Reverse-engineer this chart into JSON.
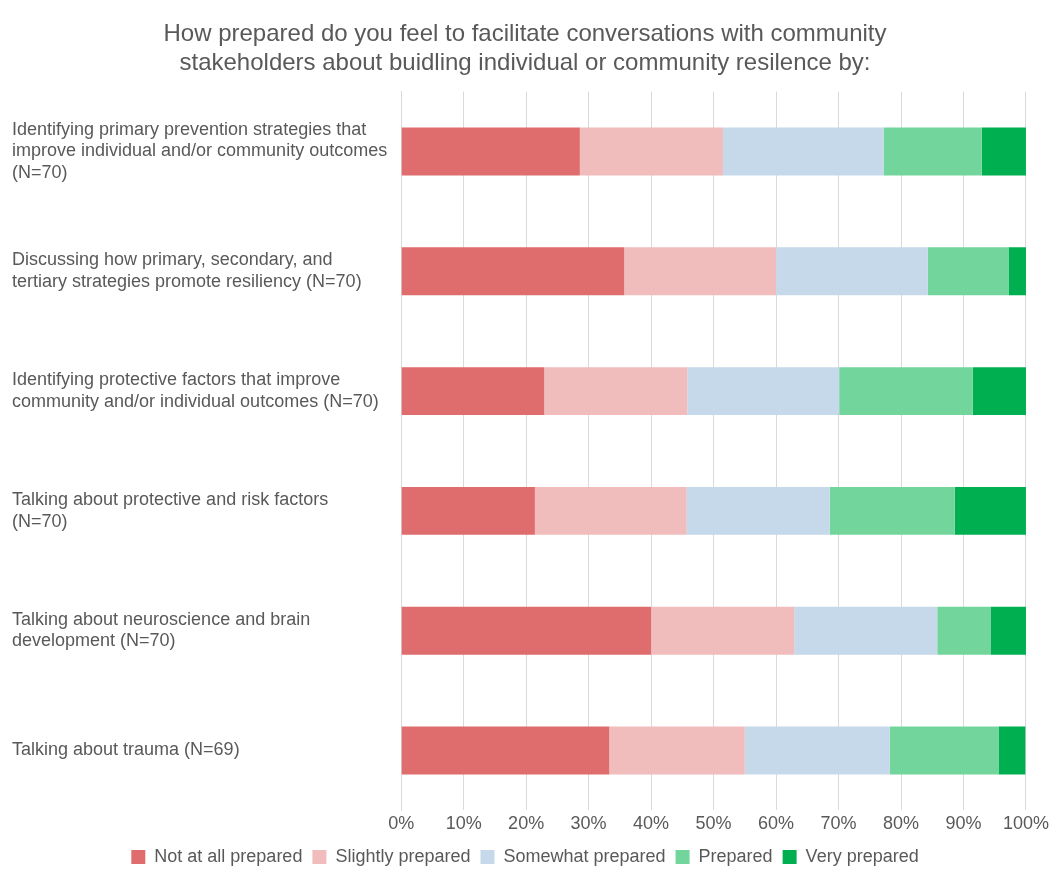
{
  "chart_data": {
    "type": "bar",
    "orientation": "horizontal",
    "stacked": true,
    "title": "How prepared do you feel to facilitate conversations with community stakeholders about buidling individual or community resilence by:",
    "categories": [
      "Identifying primary prevention strategies that improve individual and/or community outcomes (N=70)",
      "Discussing how primary, secondary, and tertiary strategies promote resiliency (N=70)",
      "Identifying protective factors that improve community and/or individual outcomes (N=70)",
      "Talking about protective and risk factors (N=70)",
      "Talking about neuroscience and brain development (N=70)",
      "Talking about trauma (N=69)"
    ],
    "series": [
      {
        "name": "Not at all prepared",
        "color": "#e06d6d",
        "values": [
          28.6,
          35.7,
          22.9,
          21.4,
          40.0,
          33.3
        ]
      },
      {
        "name": "Slightly prepared",
        "color": "#f0bcbc",
        "values": [
          22.9,
          24.3,
          22.9,
          24.3,
          22.9,
          21.7
        ]
      },
      {
        "name": "Somewhat prepared",
        "color": "#c6d9eb",
        "values": [
          25.7,
          24.3,
          24.3,
          22.9,
          22.9,
          23.2
        ]
      },
      {
        "name": "Prepared",
        "color": "#72d59c",
        "values": [
          15.7,
          12.9,
          21.4,
          20.0,
          8.6,
          17.4
        ]
      },
      {
        "name": "Very prepared",
        "color": "#00b050",
        "values": [
          7.1,
          2.9,
          8.6,
          11.4,
          5.7,
          4.3
        ]
      }
    ],
    "xlim": [
      0,
      100
    ],
    "xticks": [
      {
        "value": 0,
        "label": "0%"
      },
      {
        "value": 10,
        "label": "10%"
      },
      {
        "value": 20,
        "label": "20%"
      },
      {
        "value": 30,
        "label": "30%"
      },
      {
        "value": 40,
        "label": "40%"
      },
      {
        "value": 50,
        "label": "50%"
      },
      {
        "value": 60,
        "label": "60%"
      },
      {
        "value": 70,
        "label": "70%"
      },
      {
        "value": 80,
        "label": "80%"
      },
      {
        "value": 90,
        "label": "90%"
      },
      {
        "value": 100,
        "label": "100%"
      }
    ],
    "grid": "x",
    "legend": "bottom"
  }
}
